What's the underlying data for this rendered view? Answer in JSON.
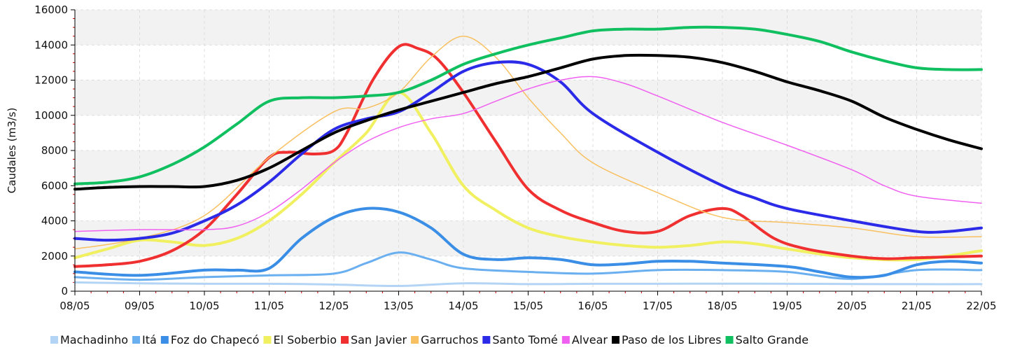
{
  "chart_data": {
    "type": "line",
    "title": "",
    "xlabel": "",
    "ylabel": "Caudales (m3/s)",
    "ylim": [
      0,
      16000
    ],
    "y_ticks": [
      0,
      2000,
      4000,
      6000,
      8000,
      10000,
      12000,
      14000,
      16000
    ],
    "x_tick_labels": [
      "08/05",
      "09/05",
      "10/05",
      "11/05",
      "12/05",
      "13/05",
      "14/05",
      "15/05",
      "16/05",
      "17/05",
      "18/05",
      "19/05",
      "20/05",
      "21/05",
      "22/05"
    ],
    "x_unit": "days from 08/05 (0 = 08/05, 14 = 22/05)",
    "xlim": [
      0,
      14
    ],
    "grid": true,
    "legend_position": "bottom",
    "series": [
      {
        "name": "Machadinho",
        "color": "#b3d4f5",
        "width": 3,
        "points": [
          [
            0,
            500
          ],
          [
            1,
            450
          ],
          [
            2,
            420
          ],
          [
            3,
            420
          ],
          [
            4,
            380
          ],
          [
            5,
            300
          ],
          [
            6,
            450
          ],
          [
            7,
            400
          ],
          [
            8,
            420
          ],
          [
            9,
            420
          ],
          [
            10,
            430
          ],
          [
            11,
            420
          ],
          [
            12,
            410
          ],
          [
            13,
            400
          ],
          [
            14,
            400
          ]
        ]
      },
      {
        "name": "Itá",
        "color": "#6aaff0",
        "width": 3,
        "points": [
          [
            0,
            800
          ],
          [
            1,
            650
          ],
          [
            2,
            800
          ],
          [
            3,
            900
          ],
          [
            4,
            1000
          ],
          [
            4.5,
            1600
          ],
          [
            5,
            2200
          ],
          [
            5.5,
            1800
          ],
          [
            6,
            1300
          ],
          [
            7,
            1100
          ],
          [
            8,
            1000
          ],
          [
            9,
            1200
          ],
          [
            10,
            1200
          ],
          [
            11,
            1100
          ],
          [
            12,
            700
          ],
          [
            13,
            1200
          ],
          [
            14,
            1200
          ]
        ]
      },
      {
        "name": "Foz do Chapecó",
        "color": "#3a8ee6",
        "width": 4,
        "points": [
          [
            0,
            1100
          ],
          [
            1,
            900
          ],
          [
            2,
            1200
          ],
          [
            2.5,
            1200
          ],
          [
            3,
            1300
          ],
          [
            3.5,
            3000
          ],
          [
            4,
            4200
          ],
          [
            4.5,
            4700
          ],
          [
            5,
            4500
          ],
          [
            5.5,
            3600
          ],
          [
            6,
            2100
          ],
          [
            6.5,
            1800
          ],
          [
            7,
            1900
          ],
          [
            7.5,
            1800
          ],
          [
            8,
            1500
          ],
          [
            8.5,
            1550
          ],
          [
            9,
            1700
          ],
          [
            9.5,
            1700
          ],
          [
            10,
            1600
          ],
          [
            11,
            1400
          ],
          [
            11.5,
            1100
          ],
          [
            12,
            800
          ],
          [
            12.5,
            900
          ],
          [
            13,
            1500
          ],
          [
            13.5,
            1700
          ],
          [
            14,
            1600
          ]
        ]
      },
      {
        "name": "El Soberbio",
        "color": "#f0f060",
        "width": 4,
        "points": [
          [
            0,
            1900
          ],
          [
            0.5,
            2400
          ],
          [
            1,
            2900
          ],
          [
            1.5,
            2800
          ],
          [
            2,
            2600
          ],
          [
            2.5,
            3000
          ],
          [
            3,
            4000
          ],
          [
            3.5,
            5500
          ],
          [
            4,
            7300
          ],
          [
            4.5,
            9000
          ],
          [
            5,
            11300
          ],
          [
            5.5,
            9000
          ],
          [
            6,
            6000
          ],
          [
            6.5,
            4600
          ],
          [
            7,
            3600
          ],
          [
            7.5,
            3100
          ],
          [
            8,
            2800
          ],
          [
            8.5,
            2600
          ],
          [
            9,
            2500
          ],
          [
            9.5,
            2600
          ],
          [
            10,
            2800
          ],
          [
            10.5,
            2700
          ],
          [
            11,
            2400
          ],
          [
            12,
            1900
          ],
          [
            13,
            1800
          ],
          [
            14,
            2300
          ]
        ]
      },
      {
        "name": "San Javier",
        "color": "#f03030",
        "width": 4,
        "points": [
          [
            0,
            1400
          ],
          [
            0.5,
            1500
          ],
          [
            1,
            1700
          ],
          [
            1.5,
            2300
          ],
          [
            2,
            3500
          ],
          [
            2.5,
            5500
          ],
          [
            3,
            7600
          ],
          [
            3.3,
            7900
          ],
          [
            3.7,
            7800
          ],
          [
            4,
            8000
          ],
          [
            4.2,
            9000
          ],
          [
            4.6,
            12000
          ],
          [
            5,
            13900
          ],
          [
            5.3,
            13800
          ],
          [
            5.6,
            13200
          ],
          [
            6,
            11300
          ],
          [
            6.5,
            8500
          ],
          [
            7,
            5800
          ],
          [
            7.5,
            4600
          ],
          [
            8,
            3900
          ],
          [
            8.5,
            3400
          ],
          [
            9,
            3400
          ],
          [
            9.5,
            4300
          ],
          [
            10,
            4700
          ],
          [
            10.3,
            4300
          ],
          [
            10.8,
            3000
          ],
          [
            11.3,
            2400
          ],
          [
            12,
            2000
          ],
          [
            12.5,
            1850
          ],
          [
            13,
            1900
          ],
          [
            14,
            2000
          ]
        ]
      },
      {
        "name": "Garruchos",
        "color": "#f8c060",
        "width": 1.5,
        "points": [
          [
            0,
            2400
          ],
          [
            1,
            3000
          ],
          [
            2,
            4300
          ],
          [
            3,
            7600
          ],
          [
            4,
            10200
          ],
          [
            4.5,
            10400
          ],
          [
            5,
            11300
          ],
          [
            5.5,
            13300
          ],
          [
            6,
            14500
          ],
          [
            6.5,
            13300
          ],
          [
            7,
            11000
          ],
          [
            7.5,
            9000
          ],
          [
            8,
            7300
          ],
          [
            9,
            5600
          ],
          [
            10,
            4200
          ],
          [
            11,
            3900
          ],
          [
            12,
            3600
          ],
          [
            13,
            3100
          ],
          [
            14,
            3100
          ]
        ]
      },
      {
        "name": "Santo Tomé",
        "color": "#2a2ae8",
        "width": 4,
        "points": [
          [
            0,
            3000
          ],
          [
            0.5,
            2900
          ],
          [
            1,
            3000
          ],
          [
            1.5,
            3300
          ],
          [
            2,
            4000
          ],
          [
            2.5,
            4900
          ],
          [
            3,
            6200
          ],
          [
            3.5,
            7800
          ],
          [
            4,
            9200
          ],
          [
            4.5,
            9800
          ],
          [
            5,
            10200
          ],
          [
            5.5,
            11300
          ],
          [
            6,
            12500
          ],
          [
            6.5,
            13000
          ],
          [
            7,
            12900
          ],
          [
            7.5,
            11900
          ],
          [
            8,
            10100
          ],
          [
            9,
            7900
          ],
          [
            10,
            6000
          ],
          [
            10.5,
            5300
          ],
          [
            11,
            4700
          ],
          [
            12,
            4000
          ],
          [
            13,
            3400
          ],
          [
            13.5,
            3400
          ],
          [
            14,
            3600
          ]
        ]
      },
      {
        "name": "Alvear",
        "color": "#f060f0",
        "width": 1.5,
        "points": [
          [
            0,
            3400
          ],
          [
            1,
            3500
          ],
          [
            2,
            3500
          ],
          [
            2.5,
            3700
          ],
          [
            3,
            4500
          ],
          [
            3.5,
            5800
          ],
          [
            4,
            7300
          ],
          [
            4.5,
            8500
          ],
          [
            5,
            9300
          ],
          [
            5.5,
            9800
          ],
          [
            6,
            10100
          ],
          [
            6.5,
            10800
          ],
          [
            7,
            11500
          ],
          [
            7.5,
            12000
          ],
          [
            8,
            12200
          ],
          [
            8.5,
            11800
          ],
          [
            9,
            11100
          ],
          [
            10,
            9600
          ],
          [
            11,
            8300
          ],
          [
            12,
            6900
          ],
          [
            12.5,
            6000
          ],
          [
            13,
            5400
          ],
          [
            14,
            5000
          ]
        ]
      },
      {
        "name": "Paso de los Libres",
        "color": "#000000",
        "width": 4,
        "points": [
          [
            0,
            5800
          ],
          [
            0.5,
            5900
          ],
          [
            1,
            5950
          ],
          [
            1.5,
            5950
          ],
          [
            2,
            5950
          ],
          [
            2.5,
            6300
          ],
          [
            3,
            7000
          ],
          [
            3.5,
            8000
          ],
          [
            4,
            9000
          ],
          [
            4.5,
            9700
          ],
          [
            5,
            10300
          ],
          [
            5.5,
            10800
          ],
          [
            6,
            11300
          ],
          [
            6.5,
            11800
          ],
          [
            7,
            12200
          ],
          [
            7.5,
            12700
          ],
          [
            8,
            13200
          ],
          [
            8.5,
            13400
          ],
          [
            9,
            13400
          ],
          [
            9.5,
            13300
          ],
          [
            10,
            13000
          ],
          [
            10.5,
            12500
          ],
          [
            11,
            11900
          ],
          [
            11.5,
            11400
          ],
          [
            12,
            10800
          ],
          [
            12.5,
            9900
          ],
          [
            13,
            9200
          ],
          [
            13.5,
            8600
          ],
          [
            14,
            8100
          ]
        ]
      },
      {
        "name": "Salto Grande",
        "color": "#10c060",
        "width": 4,
        "points": [
          [
            0,
            6100
          ],
          [
            0.5,
            6200
          ],
          [
            1,
            6500
          ],
          [
            1.5,
            7200
          ],
          [
            2,
            8200
          ],
          [
            2.5,
            9500
          ],
          [
            3,
            10800
          ],
          [
            3.5,
            11000
          ],
          [
            4,
            11000
          ],
          [
            4.5,
            11100
          ],
          [
            5,
            11300
          ],
          [
            5.5,
            12000
          ],
          [
            6,
            12900
          ],
          [
            6.5,
            13500
          ],
          [
            7,
            14000
          ],
          [
            7.5,
            14400
          ],
          [
            8,
            14800
          ],
          [
            8.5,
            14900
          ],
          [
            9,
            14900
          ],
          [
            9.5,
            15000
          ],
          [
            10,
            15000
          ],
          [
            10.5,
            14900
          ],
          [
            11,
            14600
          ],
          [
            11.5,
            14200
          ],
          [
            12,
            13600
          ],
          [
            12.5,
            13100
          ],
          [
            13,
            12700
          ],
          [
            13.5,
            12600
          ],
          [
            14,
            12600
          ]
        ]
      }
    ]
  }
}
